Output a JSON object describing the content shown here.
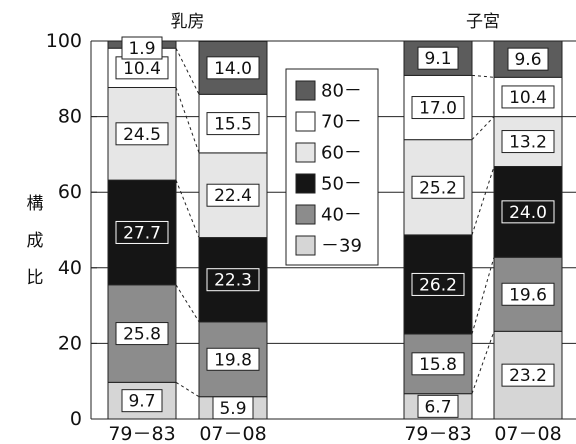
{
  "chart_data": {
    "type": "bar",
    "stacked": true,
    "ylabel": "構成比",
    "ylim": [
      0,
      100
    ],
    "yticks": [
      0,
      20,
      40,
      60,
      80,
      100
    ],
    "grid": true,
    "legend_position": "center",
    "groups": [
      {
        "title": "乳房",
        "categories": [
          "79－83",
          "07－08"
        ]
      },
      {
        "title": "子宮",
        "categories": [
          "79－83",
          "07－08"
        ]
      }
    ],
    "series": [
      {
        "name": "－39",
        "color": "#d6d6d6",
        "values": [
          9.7,
          5.9,
          6.7,
          23.2
        ]
      },
      {
        "name": "40－",
        "color": "#8c8c8c",
        "values": [
          25.8,
          19.8,
          15.8,
          19.6
        ]
      },
      {
        "name": "50－",
        "color": "#151515",
        "values": [
          27.7,
          22.3,
          26.2,
          24.0
        ]
      },
      {
        "name": "60－",
        "color": "#e6e6e6",
        "values": [
          24.5,
          22.4,
          25.2,
          13.2
        ]
      },
      {
        "name": "70－",
        "color": "#ffffff",
        "values": [
          10.4,
          15.5,
          17.0,
          10.4
        ]
      },
      {
        "name": "80－",
        "color": "#5c5c5c",
        "values": [
          1.9,
          14.0,
          9.1,
          9.6
        ]
      }
    ],
    "data_labels": [
      [
        "9.7",
        "5.9",
        "6.7",
        "23.2"
      ],
      [
        "25.8",
        "19.8",
        "15.8",
        "19.6"
      ],
      [
        "27.7",
        "22.3",
        "26.2",
        "24.0"
      ],
      [
        "24.5",
        "22.4",
        "25.2",
        "13.2"
      ],
      [
        "10.4",
        "15.5",
        "17.0",
        "10.4"
      ],
      [
        "1.9",
        "14.0",
        "9.1",
        "9.6"
      ]
    ],
    "legend_order": [
      "80－",
      "70－",
      "60－",
      "50－",
      "40－",
      "－39"
    ]
  }
}
